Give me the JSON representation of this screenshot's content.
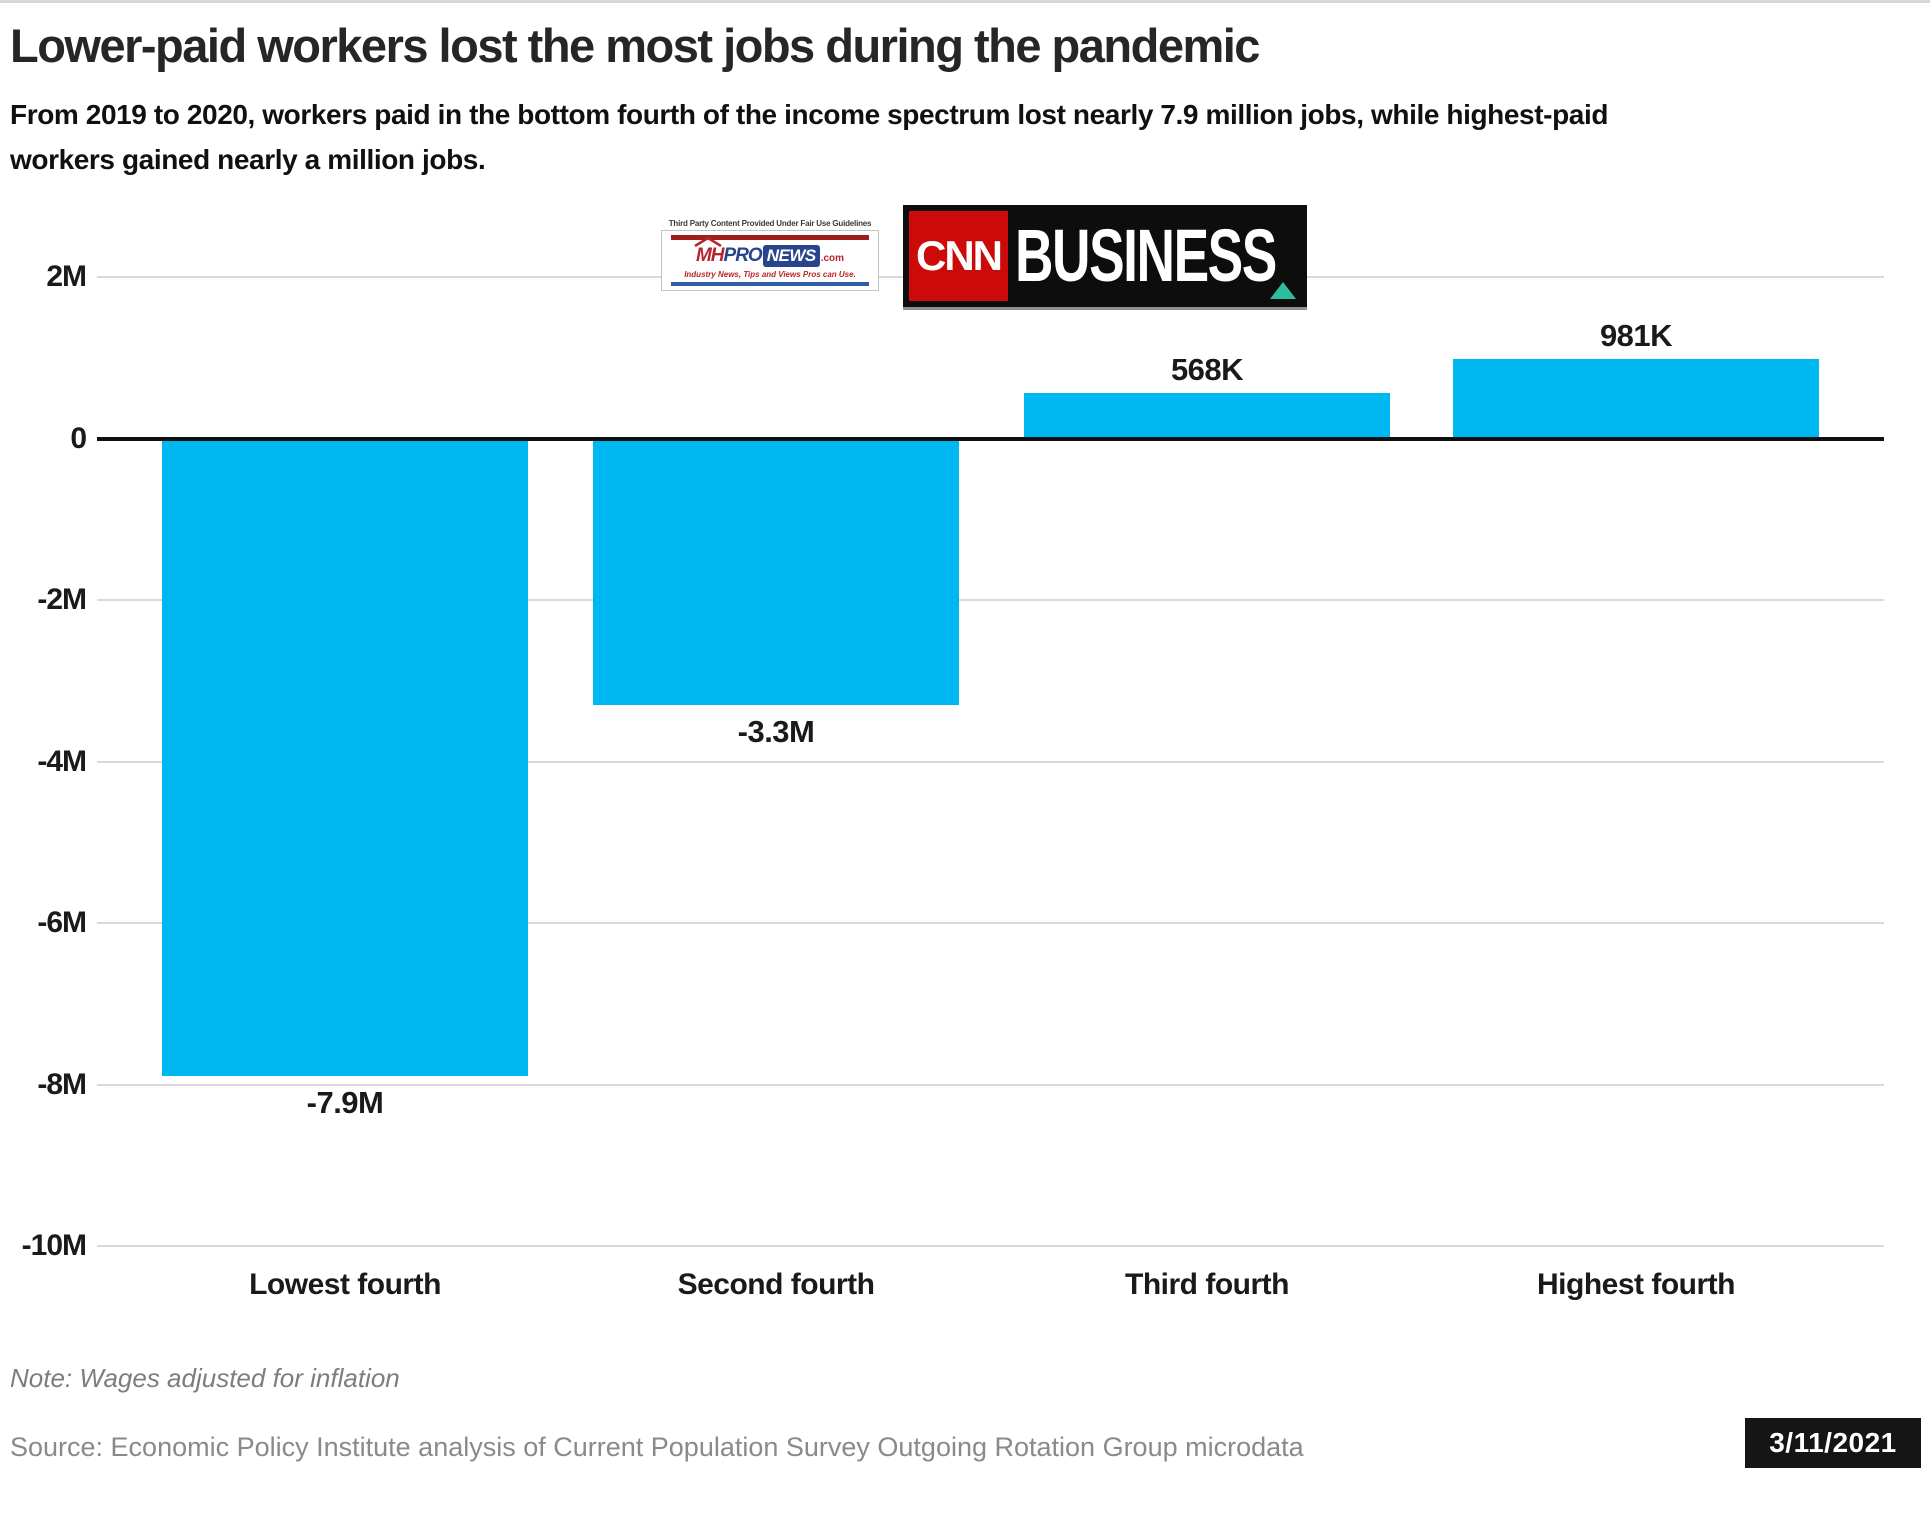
{
  "header": {
    "title": "Lower-paid workers lost the most jobs during the pandemic",
    "subtitle_lines": [
      "From 2019 to 2020, workers paid in the bottom fourth of the income spectrum lost nearly 7.9 million jobs, while highest-paid",
      "workers gained nearly a million jobs."
    ]
  },
  "logos": {
    "mhpronews": {
      "disclaimer": "Third Party Content Provided Under Fair Use Guidelines",
      "mh": "MH",
      "pro": "PRO",
      "news": "NEWS",
      "com": ".com",
      "tagline": "Industry News, Tips and Views Pros can Use."
    },
    "cnn_business": {
      "network": "CNN",
      "division": "BUSINESS"
    }
  },
  "chart_data": {
    "type": "bar",
    "title": "Lower-paid workers lost the most jobs during the pandemic",
    "xlabel": "",
    "ylabel": "",
    "categories": [
      "Lowest fourth",
      "Second fourth",
      "Third fourth",
      "Highest fourth"
    ],
    "values_millions": [
      -7.9,
      -3.3,
      0.568,
      0.981
    ],
    "value_labels": [
      "-7.9M",
      "-3.3M",
      "568K",
      "981K"
    ],
    "y_ticks": [
      {
        "label": "2M",
        "value": 2
      },
      {
        "label": "0",
        "value": 0
      },
      {
        "label": "-2M",
        "value": -2
      },
      {
        "label": "-4M",
        "value": -4
      },
      {
        "label": "-6M",
        "value": -6
      },
      {
        "label": "-8M",
        "value": -8
      },
      {
        "label": "-10M",
        "value": -10
      }
    ],
    "ylim": [
      -10,
      2
    ],
    "grid": true,
    "legend": false,
    "bar_color": "#00b8f1"
  },
  "footer": {
    "note": "Note: Wages adjusted for inflation",
    "source": "Source: Economic Policy Institute analysis of Current Population Survey Outgoing Rotation Group microdata",
    "date": "3/11/2021"
  },
  "colors": {
    "bar": "#00b8f1",
    "cnn_red": "#cc0a0a",
    "teal": "#2bbfa0",
    "date_badge_bg": "#151515"
  }
}
